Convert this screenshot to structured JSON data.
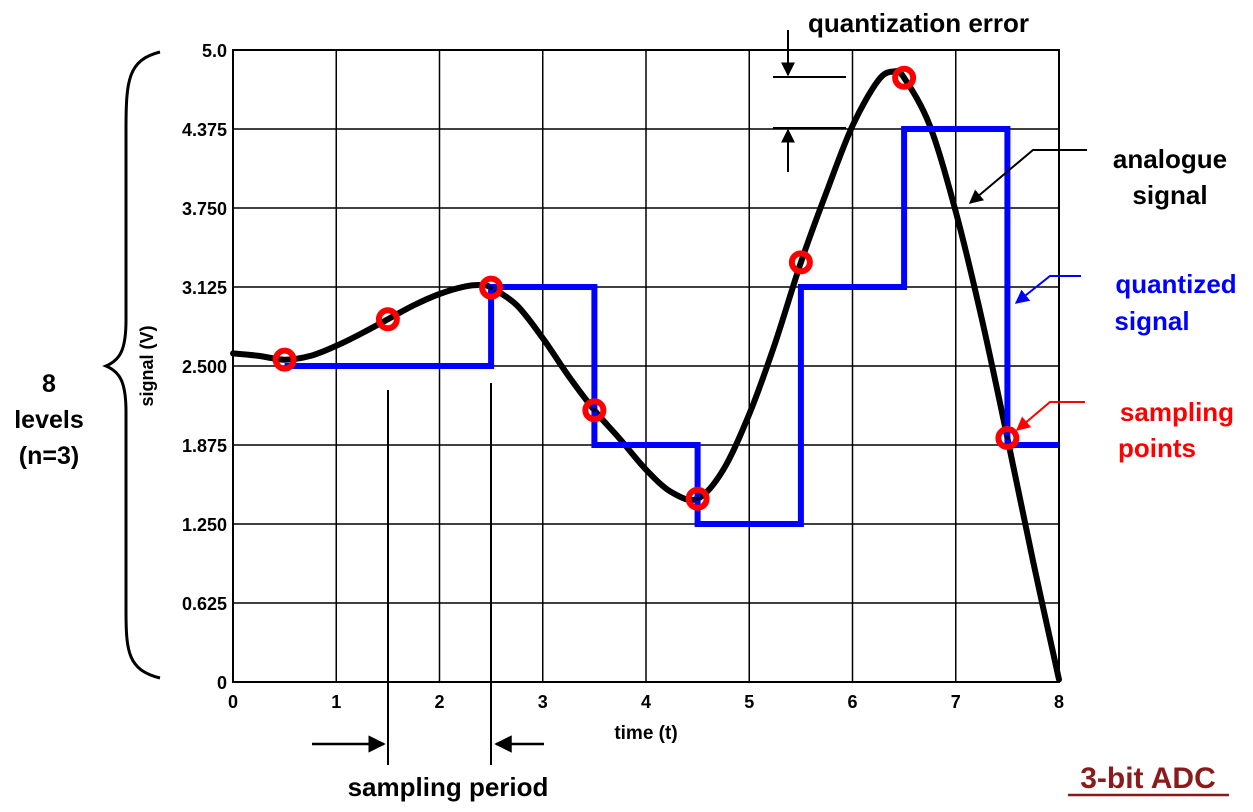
{
  "chart_data": {
    "type": "line",
    "title": "3-bit ADC",
    "xlabel": "time (t)",
    "ylabel": "signal (V)",
    "xlim": [
      0,
      8
    ],
    "ylim": [
      0,
      5
    ],
    "grid": true,
    "x_ticks": [
      "0",
      "1",
      "2",
      "3",
      "4",
      "5",
      "6",
      "7",
      "8"
    ],
    "y_ticks": [
      "0",
      "0.625",
      "1.250",
      "1.875",
      "2.500",
      "3.125",
      "3.750",
      "4.375",
      "5.0"
    ],
    "series": [
      {
        "name": "analogue signal",
        "color": "#000000",
        "x": [
          0,
          0.25,
          0.5,
          0.75,
          1.0,
          1.25,
          1.5,
          1.75,
          2.0,
          2.25,
          2.4,
          2.5,
          2.75,
          3.0,
          3.25,
          3.5,
          3.75,
          4.0,
          4.25,
          4.5,
          4.75,
          5.0,
          5.25,
          5.5,
          5.75,
          6.0,
          6.25,
          6.4,
          6.5,
          6.75,
          7.0,
          7.25,
          7.5,
          7.75,
          8.0
        ],
        "y": [
          2.6,
          2.58,
          2.55,
          2.58,
          2.66,
          2.76,
          2.87,
          2.98,
          3.07,
          3.13,
          3.14,
          3.12,
          2.98,
          2.72,
          2.42,
          2.15,
          1.92,
          1.68,
          1.5,
          1.45,
          1.68,
          2.12,
          2.68,
          3.32,
          3.88,
          4.4,
          4.76,
          4.83,
          4.78,
          4.4,
          3.72,
          2.88,
          1.93,
          0.95,
          0.02
        ]
      },
      {
        "name": "quantized signal",
        "color": "#0000ff",
        "x": [
          0.5,
          1.5,
          2.5,
          3.5,
          4.5,
          5.5,
          6.5,
          7.5,
          8.0
        ],
        "y": [
          2.5,
          2.5,
          3.125,
          1.875,
          1.25,
          3.125,
          4.375,
          1.875,
          1.875
        ]
      },
      {
        "name": "sampling points",
        "color": "#ff0000",
        "x": [
          0.5,
          1.5,
          2.5,
          3.5,
          4.5,
          5.5,
          6.5,
          7.5
        ],
        "y": [
          2.55,
          2.87,
          3.12,
          2.15,
          1.45,
          3.32,
          4.78,
          1.93
        ]
      }
    ],
    "annotations": {
      "levels_line1": "8",
      "levels_line2": "levels",
      "levels_line3": "(n=3)",
      "quantization_error": "quantization error",
      "analogue_line1": "analogue",
      "analogue_line2": "signal",
      "quantized_line1": "quantized",
      "quantized_line2": "signal",
      "sampling_line1": "sampling",
      "sampling_line2": "points",
      "sampling_period": "sampling period"
    },
    "colors": {
      "analogue": "#000000",
      "quantized": "#0000ff",
      "sampling": "#ff0000",
      "title": "#8b1a1a"
    }
  }
}
